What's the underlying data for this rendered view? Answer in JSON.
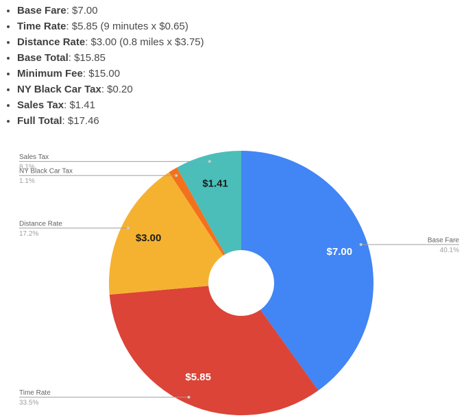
{
  "page": {
    "background": "#ffffff"
  },
  "fare_list": {
    "items": [
      {
        "bold": "Base Fare",
        "rest": ": $7.00"
      },
      {
        "bold": "Time Rate",
        "rest": ": $5.85 (9 minutes x $0.65)"
      },
      {
        "bold": "Distance Rate",
        "rest": ": $3.00 (0.8 miles x $3.75)"
      },
      {
        "bold": "Base Total",
        "rest": ": $15.85"
      },
      {
        "bold": "Minimum Fee",
        "rest": ": $15.00"
      },
      {
        "bold": "NY Black Car Tax",
        "rest": ": $0.20"
      },
      {
        "bold": "Sales Tax",
        "rest": ": $1.41"
      },
      {
        "bold": "Full Total",
        "rest": ": $17.46"
      }
    ]
  },
  "chart_data": {
    "type": "pie",
    "donut": true,
    "title": "",
    "legend_position": "labeled-callouts",
    "slices": [
      {
        "name": "Base Fare",
        "amount": 7.0,
        "value_label": "$7.00",
        "percent": 40.1,
        "percent_label": "40.1%",
        "color": "#4285F4",
        "text_color": "#ffffff",
        "callout_side": "right"
      },
      {
        "name": "Time Rate",
        "amount": 5.85,
        "value_label": "$5.85",
        "percent": 33.5,
        "percent_label": "33.5%",
        "color": "#DB4437",
        "text_color": "#ffffff",
        "callout_side": "left"
      },
      {
        "name": "Distance Rate",
        "amount": 3.0,
        "value_label": "$3.00",
        "percent": 17.2,
        "percent_label": "17.2%",
        "color": "#F5B231",
        "text_color": "#1d1d1d",
        "callout_side": "left"
      },
      {
        "name": "NY Black Car Tax",
        "amount": 0.2,
        "value_label": null,
        "percent": 1.1,
        "percent_label": "1.1%",
        "color": "#F4711C",
        "text_color": "#1d1d1d",
        "callout_side": "left"
      },
      {
        "name": "Sales Tax",
        "amount": 1.41,
        "value_label": "$1.41",
        "percent": 8.1,
        "percent_label": "8.1%",
        "color": "#4BBEB9",
        "text_color": "#1d1d1d",
        "callout_side": "left"
      }
    ]
  }
}
